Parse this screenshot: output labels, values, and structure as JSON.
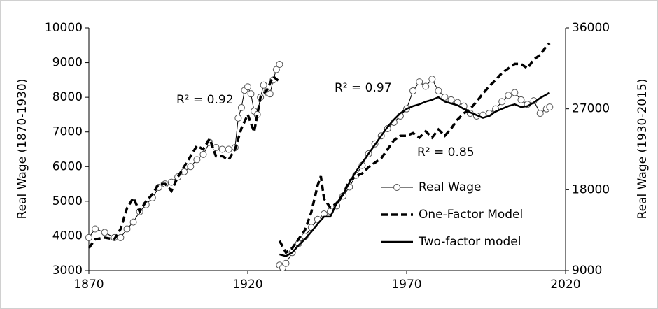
{
  "chart_data": {
    "type": "line",
    "xlabel": null,
    "ylabel": "Real Wage (1870-1930)",
    "y2label": "Real Wage (1930-2015)",
    "xlim": [
      1870,
      2020
    ],
    "xticks": [
      1870,
      1920,
      1970,
      2020
    ],
    "ylim": [
      3000,
      10000
    ],
    "yticks": [
      3000,
      4000,
      5000,
      6000,
      7000,
      8000,
      9000,
      10000
    ],
    "y2lim": [
      9000,
      36000
    ],
    "y2ticks": [
      9000,
      18000,
      27000,
      36000
    ],
    "legend": "lower right",
    "annotations": [
      "R² = 0.92",
      "R² = 0.97",
      "R² = 0.85"
    ],
    "series": [
      {
        "name": "Real Wage",
        "color": "#000000",
        "style": "solid-marker",
        "parts": [
          {
            "axis": "y",
            "x": [
              1870,
              1872,
              1875,
              1878,
              1880,
              1882,
              1884,
              1886,
              1888,
              1890,
              1892,
              1894,
              1896,
              1898,
              1900,
              1902,
              1904,
              1906,
              1908,
              1910,
              1912,
              1914,
              1916,
              1917,
              1918,
              1919,
              1920,
              1921,
              1922,
              1923,
              1924,
              1925,
              1926,
              1927,
              1928,
              1929,
              1930
            ],
            "values": [
              3950,
              4200,
              4100,
              3950,
              3950,
              4200,
              4400,
              4700,
              4900,
              5100,
              5400,
              5500,
              5550,
              5700,
              5850,
              6000,
              6200,
              6350,
              6700,
              6550,
              6500,
              6500,
              6550,
              7400,
              7700,
              8200,
              8300,
              8100,
              7600,
              7500,
              8000,
              8350,
              8150,
              8100,
              8500,
              8800,
              8950
            ]
          },
          {
            "axis": "y2",
            "x": [
              1930,
              1931,
              1932,
              1934,
              1936,
              1938,
              1940,
              1942,
              1944,
              1946,
              1948,
              1950,
              1952,
              1954,
              1956,
              1958,
              1960,
              1962,
              1964,
              1966,
              1968,
              1970,
              1972,
              1974,
              1976,
              1978,
              1980,
              1982,
              1984,
              1986,
              1988,
              1990,
              1992,
              1994,
              1996,
              1998,
              2000,
              2002,
              2004,
              2006,
              2008,
              2010,
              2012,
              2014,
              2015
            ],
            "values": [
              9600,
              9300,
              9800,
              11000,
              12000,
              12800,
              13800,
              14700,
              15300,
              15600,
              16200,
              17300,
              18300,
              19600,
              20700,
              22000,
              23100,
              24000,
              24800,
              25500,
              26200,
              27000,
              29000,
              30000,
              29500,
              30300,
              29000,
              28300,
              28000,
              27700,
              27300,
              26500,
              26200,
              26300,
              26500,
              27000,
              27800,
              28500,
              28800,
              28000,
              27500,
              27900,
              26500,
              27000,
              27200
            ]
          }
        ]
      },
      {
        "name": "One-Factor Model",
        "color": "#000000",
        "style": "dashed",
        "parts": [
          {
            "axis": "y",
            "x": [
              1870,
              1872,
              1875,
              1878,
              1880,
              1882,
              1884,
              1886,
              1888,
              1890,
              1892,
              1894,
              1896,
              1898,
              1900,
              1902,
              1904,
              1906,
              1908,
              1910,
              1912,
              1914,
              1916,
              1918,
              1920,
              1922,
              1924,
              1926,
              1928,
              1930
            ],
            "values": [
              3650,
              3900,
              3950,
              3900,
              4200,
              4800,
              5100,
              4700,
              5000,
              5200,
              5500,
              5500,
              5300,
              5700,
              6000,
              6300,
              6600,
              6500,
              6800,
              6300,
              6300,
              6200,
              6500,
              7100,
              7500,
              7000,
              8000,
              8200,
              8600,
              8450
            ]
          },
          {
            "axis": "y2",
            "x": [
              1930,
              1932,
              1934,
              1936,
              1938,
              1940,
              1942,
              1943,
              1944,
              1946,
              1948,
              1950,
              1952,
              1954,
              1956,
              1958,
              1960,
              1962,
              1964,
              1966,
              1968,
              1970,
              1972,
              1974,
              1976,
              1978,
              1980,
              1982,
              1984,
              1986,
              1988,
              1990,
              1992,
              1994,
              1996,
              1998,
              2000,
              2002,
              2004,
              2006,
              2008,
              2010,
              2012,
              2014,
              2015
            ],
            "values": [
              12300,
              11000,
              11500,
              12500,
              13500,
              15500,
              18500,
              19500,
              17000,
              16000,
              16500,
              17500,
              19000,
              19500,
              19800,
              20500,
              21000,
              21500,
              22500,
              23500,
              24000,
              24000,
              24300,
              23800,
              24500,
              23800,
              24700,
              24000,
              24800,
              25800,
              26500,
              27000,
              27800,
              28700,
              29500,
              30200,
              31000,
              31500,
              32000,
              32000,
              31500,
              32500,
              33000,
              34000,
              34300
            ]
          }
        ]
      },
      {
        "name": "Two-factor model",
        "color": "#000000",
        "style": "solid",
        "parts": [
          {
            "axis": "y2",
            "x": [
              1930,
              1932,
              1934,
              1936,
              1938,
              1940,
              1942,
              1944,
              1946,
              1948,
              1950,
              1952,
              1954,
              1956,
              1958,
              1960,
              1962,
              1964,
              1966,
              1968,
              1970,
              1972,
              1974,
              1976,
              1978,
              1980,
              1982,
              1984,
              1986,
              1988,
              1990,
              1992,
              1994,
              1996,
              1998,
              2000,
              2002,
              2004,
              2006,
              2008,
              2010,
              2012,
              2014,
              2015
            ],
            "values": [
              10800,
              10600,
              11000,
              11800,
              12500,
              13300,
              14200,
              15000,
              15000,
              16500,
              17500,
              18800,
              20000,
              21000,
              22000,
              23000,
              24000,
              25000,
              25800,
              26500,
              27000,
              27300,
              27500,
              27800,
              28000,
              28300,
              27800,
              27600,
              27400,
              27000,
              26600,
              26300,
              26000,
              26200,
              26700,
              27000,
              27300,
              27500,
              27200,
              27300,
              27700,
              28200,
              28600,
              28800
            ]
          }
        ]
      }
    ]
  }
}
